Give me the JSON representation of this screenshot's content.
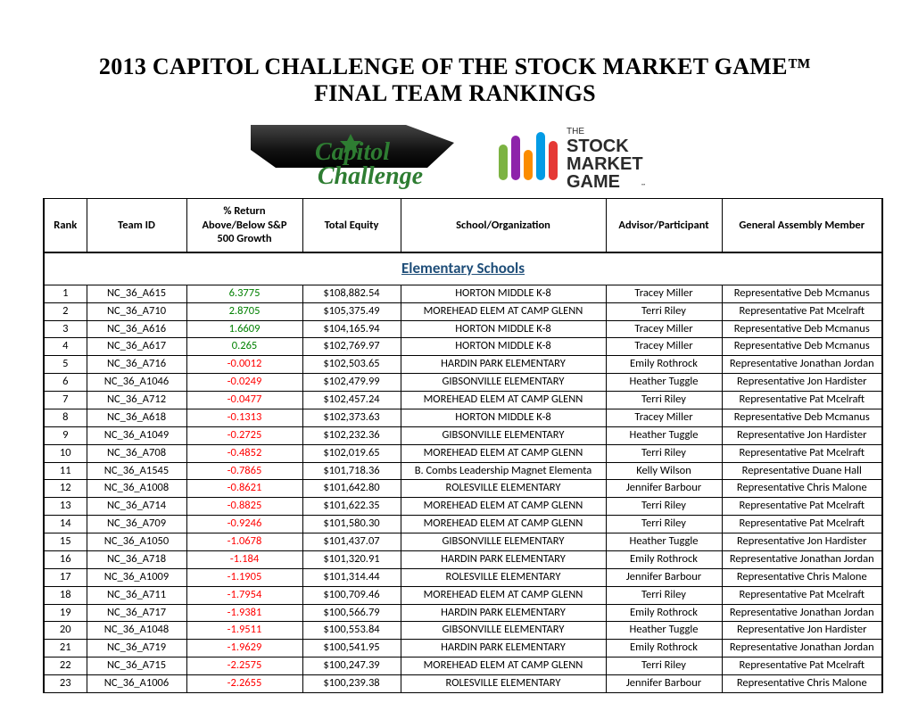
{
  "title_line1": "2013 CAPITOL CHALLENGE OF THE STOCK MARKET GAME™",
  "title_line2": "FINAL TEAM RANKINGS",
  "section_title": "Elementary Schools",
  "section_title_color": "#1f4e79",
  "logos": {
    "capitol_challenge": {
      "line1": "Capitol",
      "line2": "Challenge",
      "text_color": "#2e7d32"
    },
    "stock_market_game": {
      "tag": "THE",
      "line1": "STOCK",
      "line2": "MARKET",
      "line3": "GAME",
      "text_color": "#323232"
    }
  },
  "columns": [
    "Rank",
    "Team ID",
    "% Return\nAbove/Below S&P\n500 Growth",
    "Total Equity",
    "School/Organization",
    "Advisor/Participant",
    "General Assembly Member"
  ],
  "colors": {
    "positive": "#008000",
    "negative": "#ff0000",
    "text": "#000000",
    "border": "#000000",
    "background": "#ffffff"
  },
  "rows": [
    {
      "rank": 1,
      "team": "NC_36_A615",
      "ret": "6.3775",
      "ret_sign": "pos",
      "equity": "$108,882.54",
      "school": "HORTON MIDDLE K-8",
      "advisor": "Tracey Miller",
      "member": "Representative Deb Mcmanus"
    },
    {
      "rank": 2,
      "team": "NC_36_A710",
      "ret": "2.8705",
      "ret_sign": "pos",
      "equity": "$105,375.49",
      "school": "MOREHEAD ELEM AT CAMP GLENN",
      "advisor": "Terri Riley",
      "member": "Representative Pat Mcelraft"
    },
    {
      "rank": 3,
      "team": "NC_36_A616",
      "ret": "1.6609",
      "ret_sign": "pos",
      "equity": "$104,165.94",
      "school": "HORTON MIDDLE K-8",
      "advisor": "Tracey Miller",
      "member": "Representative Deb Mcmanus"
    },
    {
      "rank": 4,
      "team": "NC_36_A617",
      "ret": "0.265",
      "ret_sign": "pos",
      "equity": "$102,769.97",
      "school": "HORTON MIDDLE K-8",
      "advisor": "Tracey Miller",
      "member": "Representative Deb Mcmanus"
    },
    {
      "rank": 5,
      "team": "NC_36_A716",
      "ret": "-0.0012",
      "ret_sign": "neg",
      "equity": "$102,503.65",
      "school": "HARDIN PARK ELEMENTARY",
      "advisor": "Emily Rothrock",
      "member": "Representative Jonathan Jordan"
    },
    {
      "rank": 6,
      "team": "NC_36_A1046",
      "ret": "-0.0249",
      "ret_sign": "neg",
      "equity": "$102,479.99",
      "school": "GIBSONVILLE ELEMENTARY",
      "advisor": "Heather Tuggle",
      "member": "Representative Jon Hardister"
    },
    {
      "rank": 7,
      "team": "NC_36_A712",
      "ret": "-0.0477",
      "ret_sign": "neg",
      "equity": "$102,457.24",
      "school": "MOREHEAD ELEM AT CAMP GLENN",
      "advisor": "Terri Riley",
      "member": "Representative Pat Mcelraft"
    },
    {
      "rank": 8,
      "team": "NC_36_A618",
      "ret": "-0.1313",
      "ret_sign": "neg",
      "equity": "$102,373.63",
      "school": "HORTON MIDDLE K-8",
      "advisor": "Tracey Miller",
      "member": "Representative Deb Mcmanus"
    },
    {
      "rank": 9,
      "team": "NC_36_A1049",
      "ret": "-0.2725",
      "ret_sign": "neg",
      "equity": "$102,232.36",
      "school": "GIBSONVILLE ELEMENTARY",
      "advisor": "Heather Tuggle",
      "member": "Representative Jon Hardister"
    },
    {
      "rank": 10,
      "team": "NC_36_A708",
      "ret": "-0.4852",
      "ret_sign": "neg",
      "equity": "$102,019.65",
      "school": "MOREHEAD ELEM AT CAMP GLENN",
      "advisor": "Terri Riley",
      "member": "Representative Pat Mcelraft"
    },
    {
      "rank": 11,
      "team": "NC_36_A1545",
      "ret": "-0.7865",
      "ret_sign": "neg",
      "equity": "$101,718.36",
      "school": "B. Combs Leadership Magnet Elementa",
      "advisor": "Kelly Wilson",
      "member": "Representative Duane Hall"
    },
    {
      "rank": 12,
      "team": "NC_36_A1008",
      "ret": "-0.8621",
      "ret_sign": "neg",
      "equity": "$101,642.80",
      "school": "ROLESVILLE ELEMENTARY",
      "advisor": "Jennifer Barbour",
      "member": "Representative Chris Malone"
    },
    {
      "rank": 13,
      "team": "NC_36_A714",
      "ret": "-0.8825",
      "ret_sign": "neg",
      "equity": "$101,622.35",
      "school": "MOREHEAD ELEM AT CAMP GLENN",
      "advisor": "Terri Riley",
      "member": "Representative Pat Mcelraft"
    },
    {
      "rank": 14,
      "team": "NC_36_A709",
      "ret": "-0.9246",
      "ret_sign": "neg",
      "equity": "$101,580.30",
      "school": "MOREHEAD ELEM AT CAMP GLENN",
      "advisor": "Terri Riley",
      "member": "Representative Pat Mcelraft"
    },
    {
      "rank": 15,
      "team": "NC_36_A1050",
      "ret": "-1.0678",
      "ret_sign": "neg",
      "equity": "$101,437.07",
      "school": "GIBSONVILLE ELEMENTARY",
      "advisor": "Heather Tuggle",
      "member": "Representative Jon Hardister"
    },
    {
      "rank": 16,
      "team": "NC_36_A718",
      "ret": "-1.184",
      "ret_sign": "neg",
      "equity": "$101,320.91",
      "school": "HARDIN PARK ELEMENTARY",
      "advisor": "Emily Rothrock",
      "member": "Representative Jonathan Jordan"
    },
    {
      "rank": 17,
      "team": "NC_36_A1009",
      "ret": "-1.1905",
      "ret_sign": "neg",
      "equity": "$101,314.44",
      "school": "ROLESVILLE ELEMENTARY",
      "advisor": "Jennifer Barbour",
      "member": "Representative Chris Malone"
    },
    {
      "rank": 18,
      "team": "NC_36_A711",
      "ret": "-1.7954",
      "ret_sign": "neg",
      "equity": "$100,709.46",
      "school": "MOREHEAD ELEM AT CAMP GLENN",
      "advisor": "Terri Riley",
      "member": "Representative Pat Mcelraft"
    },
    {
      "rank": 19,
      "team": "NC_36_A717",
      "ret": "-1.9381",
      "ret_sign": "neg",
      "equity": "$100,566.79",
      "school": "HARDIN PARK ELEMENTARY",
      "advisor": "Emily Rothrock",
      "member": "Representative Jonathan Jordan"
    },
    {
      "rank": 20,
      "team": "NC_36_A1048",
      "ret": "-1.9511",
      "ret_sign": "neg",
      "equity": "$100,553.84",
      "school": "GIBSONVILLE ELEMENTARY",
      "advisor": "Heather Tuggle",
      "member": "Representative Jon Hardister"
    },
    {
      "rank": 21,
      "team": "NC_36_A719",
      "ret": "-1.9629",
      "ret_sign": "neg",
      "equity": "$100,541.95",
      "school": "HARDIN PARK ELEMENTARY",
      "advisor": "Emily Rothrock",
      "member": "Representative Jonathan Jordan"
    },
    {
      "rank": 22,
      "team": "NC_36_A715",
      "ret": "-2.2575",
      "ret_sign": "neg",
      "equity": "$100,247.39",
      "school": "MOREHEAD ELEM AT CAMP GLENN",
      "advisor": "Terri Riley",
      "member": "Representative Pat Mcelraft"
    },
    {
      "rank": 23,
      "team": "NC_36_A1006",
      "ret": "-2.2655",
      "ret_sign": "neg",
      "equity": "$100,239.38",
      "school": "ROLESVILLE ELEMENTARY",
      "advisor": "Jennifer Barbour",
      "member": "Representative Chris Malone"
    }
  ]
}
